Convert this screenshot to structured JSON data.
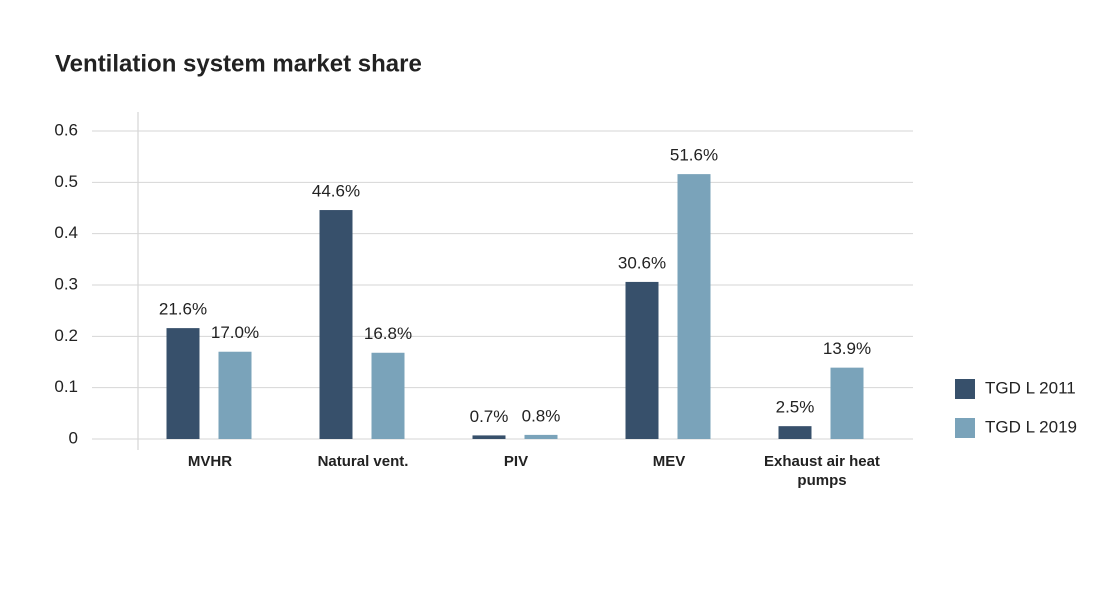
{
  "chart_data": {
    "type": "bar",
    "title": "Ventilation system market share",
    "categories": [
      "MVHR",
      "Natural vent.",
      "PIV",
      "MEV",
      "Exhaust air heat pumps"
    ],
    "series": [
      {
        "name": "TGD L 2011",
        "color": "#37506b",
        "values": [
          0.216,
          0.446,
          0.007,
          0.306,
          0.025
        ],
        "value_labels": [
          "21.6%",
          "44.6%",
          "0.7%",
          "30.6%",
          "2.5%"
        ]
      },
      {
        "name": "TGD L 2019",
        "color": "#7aa3ba",
        "values": [
          0.17,
          0.168,
          0.008,
          0.516,
          0.139
        ],
        "value_labels": [
          "17.0%",
          "16.8%",
          "0.8%",
          "51.6%",
          "13.9%"
        ]
      }
    ],
    "ylim": [
      0,
      0.6
    ],
    "yticks": [
      0,
      0.1,
      0.2,
      0.3,
      0.4,
      0.5,
      0.6
    ],
    "grid": true,
    "legend": "right"
  }
}
